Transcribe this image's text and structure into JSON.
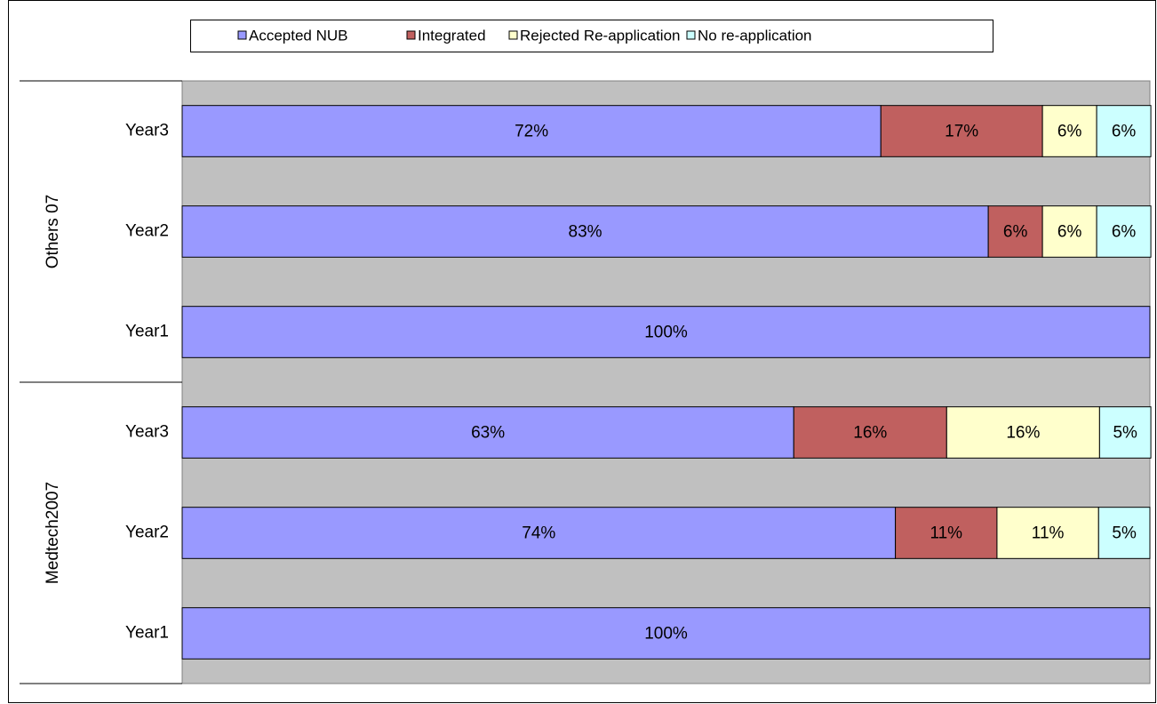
{
  "chart_data": {
    "type": "stacked_barh",
    "groups": [
      {
        "name": "Others 07",
        "categories": [
          "Year3",
          "Year2",
          "Year1"
        ]
      },
      {
        "name": "Medtech2007",
        "categories": [
          "Year3",
          "Year2",
          "Year1"
        ]
      }
    ],
    "xlim": [
      0,
      100
    ],
    "plot_background": "#c0c0c0",
    "legend": "top",
    "series": [
      {
        "name": "Accepted NUB",
        "color": "#9999ff",
        "values": [
          72.2,
          83.3,
          100,
          63.2,
          73.7,
          100
        ],
        "value_labels": [
          "72%",
          "83%",
          "100%",
          "63%",
          "74%",
          "100%"
        ]
      },
      {
        "name": "Integrated",
        "color": "#c0605f",
        "values": [
          16.7,
          5.6,
          0,
          15.8,
          10.5,
          0
        ],
        "value_labels": [
          "17%",
          "6%",
          null,
          "16%",
          "11%",
          null
        ]
      },
      {
        "name": "Rejected Re-application",
        "color": "#ffffcc",
        "values": [
          5.6,
          5.6,
          0,
          15.8,
          10.5,
          0
        ],
        "value_labels": [
          "6%",
          "6%",
          null,
          "16%",
          "11%",
          null
        ]
      },
      {
        "name": "No re-application",
        "color": "#ccffff",
        "values": [
          5.6,
          5.6,
          0,
          5.3,
          5.3,
          0
        ],
        "value_labels": [
          "6%",
          "6%",
          null,
          "5%",
          "5%",
          null
        ]
      }
    ]
  }
}
